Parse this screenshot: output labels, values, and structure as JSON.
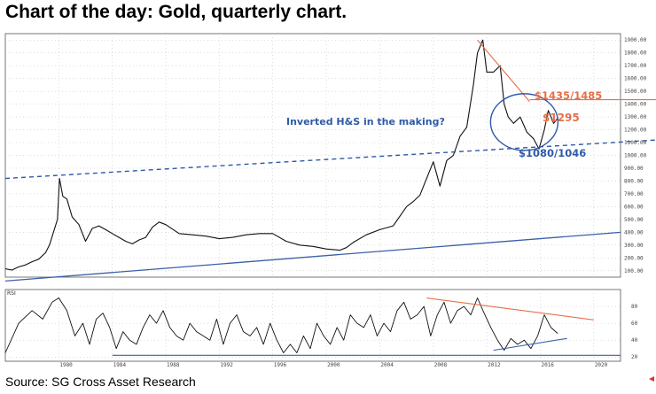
{
  "title": "Chart of the day: Gold, quarterly chart.",
  "source": "Source: SG Cross Asset Research",
  "chart_data": [
    {
      "type": "line",
      "title": "Chart of the day: Gold, quarterly chart.",
      "ylim": [
        50,
        1950
      ],
      "xlim": [
        1976,
        2022
      ],
      "y_ticks": [
        "1900.00",
        "1800.00",
        "1700.00",
        "1600.00",
        "1500.00",
        "1400.00",
        "1300.00",
        "1200.00",
        "1100.00",
        "1000.00",
        "900.00",
        "800.00",
        "700.00",
        "600.00",
        "500.00",
        "400.00",
        "300.00",
        "200.00",
        "100.00"
      ],
      "series": [
        {
          "x": [
            1976.0,
            1976.5,
            1977.0,
            1977.5,
            1978.0,
            1978.5,
            1979.0,
            1979.3,
            1979.6,
            1979.9,
            1980.05,
            1980.3,
            1980.6,
            1981.0,
            1981.5,
            1982.0,
            1982.5,
            1983.0,
            1983.5,
            1984.0,
            1984.5,
            1985.0,
            1985.5,
            1986.0,
            1986.5,
            1987.0,
            1987.5,
            1988.0,
            1989.0,
            1990.0,
            1991.0,
            1992.0,
            1993.0,
            1994.0,
            1995.0,
            1996.0,
            1997.0,
            1998.0,
            1999.0,
            2000.0,
            2001.0,
            2001.5,
            2002.0,
            2003.0,
            2004.0,
            2005.0,
            2006.0,
            2006.5,
            2007.0,
            2008.0,
            2008.5,
            2009.0,
            2009.5,
            2010.0,
            2010.5,
            2011.0,
            2011.3,
            2011.7,
            2012.0,
            2012.5,
            2013.0,
            2013.3,
            2013.6,
            2014.0,
            2014.5,
            2015.0,
            2015.5,
            2015.9,
            2016.3,
            2016.6,
            2017.0,
            2017.3
          ],
          "values": [
            115,
            105,
            130,
            145,
            170,
            190,
            240,
            300,
            400,
            500,
            820,
            680,
            660,
            520,
            460,
            330,
            430,
            450,
            420,
            390,
            360,
            330,
            310,
            340,
            360,
            440,
            480,
            460,
            390,
            380,
            370,
            350,
            360,
            380,
            390,
            390,
            330,
            300,
            290,
            270,
            260,
            280,
            320,
            380,
            420,
            450,
            600,
            640,
            690,
            950,
            760,
            960,
            1000,
            1150,
            1220,
            1550,
            1800,
            1900,
            1650,
            1650,
            1700,
            1400,
            1300,
            1250,
            1300,
            1180,
            1130,
            1050,
            1200,
            1350,
            1250,
            1290
          ]
        }
      ],
      "annotations": [
        "Inverted H&S in the making?",
        "$1435/1485",
        "$1295",
        "$1080/1046"
      ]
    },
    {
      "type": "line",
      "title": "RSI",
      "ylim": [
        15,
        100
      ],
      "y_ticks": [
        "80",
        "60",
        "40",
        "20"
      ],
      "x_ticks": [
        "1980",
        "1984",
        "1988",
        "1992",
        "1996",
        "2000",
        "2004",
        "2008",
        "2012",
        "2016",
        "2020"
      ],
      "series": [
        {
          "x": [
            1976.0,
            1977.0,
            1978.0,
            1978.8,
            1979.5,
            1980.0,
            1980.6,
            1981.2,
            1981.8,
            1982.3,
            1982.8,
            1983.3,
            1983.8,
            1984.3,
            1984.8,
            1985.3,
            1985.8,
            1986.3,
            1986.8,
            1987.3,
            1987.8,
            1988.3,
            1988.8,
            1989.3,
            1989.8,
            1990.3,
            1990.8,
            1991.3,
            1991.8,
            1992.3,
            1992.8,
            1993.3,
            1993.8,
            1994.3,
            1994.8,
            1995.3,
            1995.8,
            1996.3,
            1996.8,
            1997.3,
            1997.8,
            1998.3,
            1998.8,
            1999.3,
            1999.8,
            2000.3,
            2000.8,
            2001.3,
            2001.8,
            2002.3,
            2002.8,
            2003.3,
            2003.8,
            2004.3,
            2004.8,
            2005.3,
            2005.8,
            2006.3,
            2006.8,
            2007.3,
            2007.8,
            2008.3,
            2008.8,
            2009.3,
            2009.8,
            2010.3,
            2010.8,
            2011.3,
            2011.8,
            2012.3,
            2012.8,
            2013.3,
            2013.8,
            2014.3,
            2014.8,
            2015.3,
            2015.8,
            2016.3,
            2016.8,
            2017.3
          ],
          "values": [
            25,
            60,
            75,
            65,
            85,
            90,
            75,
            45,
            60,
            35,
            65,
            72,
            55,
            30,
            50,
            40,
            35,
            55,
            70,
            60,
            75,
            55,
            45,
            40,
            60,
            50,
            45,
            40,
            65,
            35,
            60,
            70,
            50,
            45,
            55,
            35,
            60,
            40,
            25,
            35,
            25,
            45,
            30,
            60,
            45,
            35,
            55,
            40,
            70,
            60,
            55,
            70,
            45,
            60,
            50,
            75,
            85,
            65,
            70,
            80,
            45,
            70,
            85,
            60,
            75,
            80,
            70,
            90,
            72,
            55,
            40,
            28,
            42,
            35,
            40,
            30,
            45,
            70,
            55,
            48
          ]
        }
      ],
      "annotations": []
    }
  ]
}
